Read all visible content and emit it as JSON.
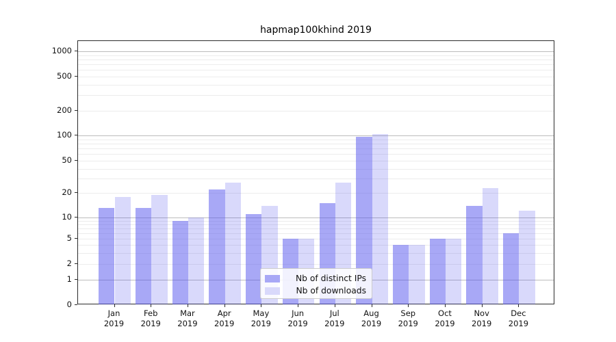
{
  "title": "hapmap100khind 2019",
  "colors": {
    "bar_distinct_ips": "rgba(82,82,238,0.5)",
    "bar_downloads": "rgba(82,82,238,0.22)",
    "legend_swatch_distinct_ips": "#a8a8f6",
    "legend_swatch_downloads": "#d9d9fb",
    "grid_minor": "#ececec",
    "grid_major": "#bcbcbc"
  },
  "legend": {
    "entries": [
      {
        "label": "Nb of distinct IPs",
        "swatch": "#a8a8f6"
      },
      {
        "label": "Nb of downloads",
        "swatch": "#d9d9fb"
      }
    ]
  },
  "y_axis": {
    "tick_labels": [
      "0",
      "1",
      "2",
      "5",
      "10",
      "20",
      "50",
      "100",
      "200",
      "500",
      "1000"
    ],
    "tick_values": [
      0,
      1,
      2,
      5,
      10,
      20,
      50,
      100,
      200,
      500,
      1000
    ]
  },
  "x_axis": {
    "tick_labels": [
      "Jan\n2019",
      "Feb\n2019",
      "Mar\n2019",
      "Apr\n2019",
      "May\n2019",
      "Jun\n2019",
      "Jul\n2019",
      "Aug\n2019",
      "Sep\n2019",
      "Oct\n2019",
      "Nov\n2019",
      "Dec\n2019"
    ]
  },
  "chart_data": {
    "type": "bar",
    "title": "hapmap100khind 2019",
    "categories": [
      "Jan 2019",
      "Feb 2019",
      "Mar 2019",
      "Apr 2019",
      "May 2019",
      "Jun 2019",
      "Jul 2019",
      "Aug 2019",
      "Sep 2019",
      "Oct 2019",
      "Nov 2019",
      "Dec 2019"
    ],
    "series": [
      {
        "name": "Nb of distinct IPs",
        "values": [
          13,
          13,
          9,
          22,
          11,
          5,
          15,
          97,
          4,
          5,
          14,
          6
        ]
      },
      {
        "name": "Nb of downloads",
        "values": [
          18,
          19,
          10,
          27,
          14,
          5,
          27,
          103,
          4,
          5,
          23,
          12
        ]
      }
    ],
    "xlabel": "",
    "ylabel": "",
    "yscale": "symlog-like",
    "yticks": [
      0,
      1,
      2,
      5,
      10,
      20,
      50,
      100,
      200,
      500,
      1000
    ],
    "ylim": [
      0,
      1300
    ],
    "grid": "horizontal, log minor + major decade lines",
    "legend_position": "lower center-right inside plot"
  }
}
